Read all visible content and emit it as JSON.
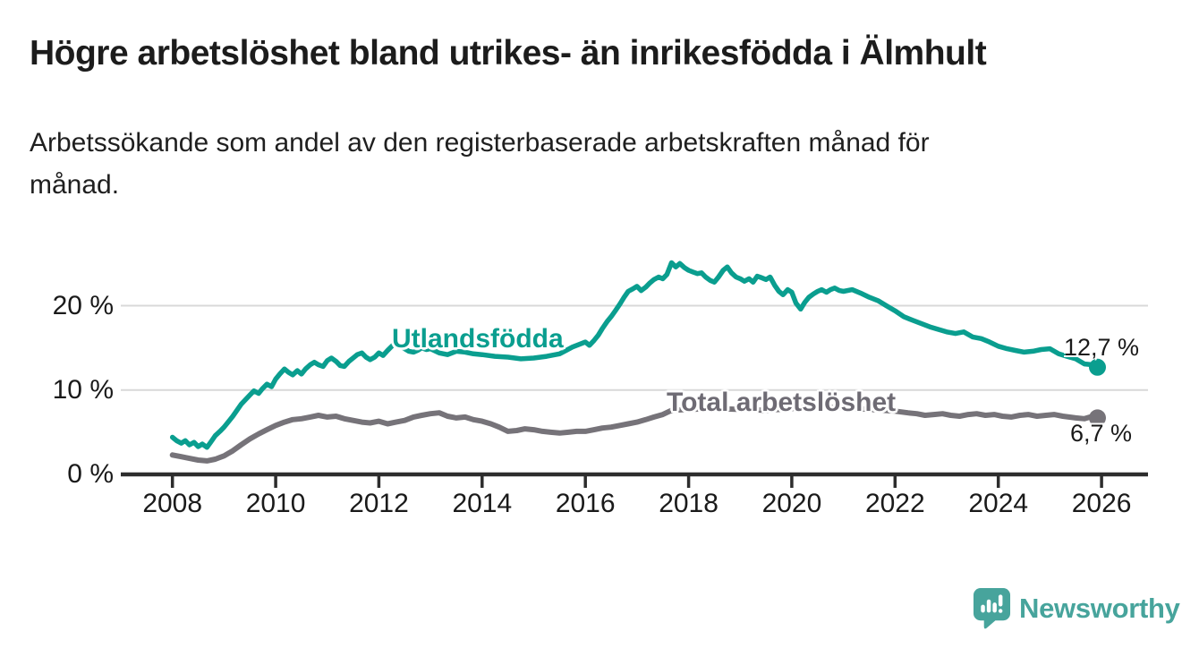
{
  "page": {
    "title": "Högre arbetslöshet bland utrikes- än inrikesfödda i Älmhult",
    "subtitle": "Arbetssökande som andel av den registerbaserade arbetskraften månad för månad."
  },
  "branding": {
    "logo_text": "Newsworthy",
    "logo_color": "#47a49c",
    "logo_icon": "bar-chart-speech-bubble-icon"
  },
  "chart_data": {
    "type": "line",
    "unit": "%",
    "grid": "horizontal",
    "x_axis": {
      "range": [
        2007.0,
        2026.9
      ],
      "ticks": [
        2008,
        2010,
        2012,
        2014,
        2016,
        2018,
        2020,
        2022,
        2024,
        2026
      ]
    },
    "y_axis": {
      "range": [
        0,
        26
      ],
      "ticks": [
        {
          "value": 0,
          "label": "0 %"
        },
        {
          "value": 10,
          "label": "10 %"
        },
        {
          "value": 20,
          "label": "20 %"
        }
      ]
    },
    "colors": {
      "grid": "#d8d8d8",
      "axis": "#2d2d2d",
      "tick_label": "#1a1a1a",
      "value_label": "#1a1a1a"
    },
    "series": [
      {
        "name": "Utlandsfödda",
        "color": "#0a9e8f",
        "label_color": "#0a9e8f",
        "end_label": "12,7 %",
        "end_value": 12.7,
        "points": [
          [
            2008.0,
            4.4
          ],
          [
            2008.08,
            4.0
          ],
          [
            2008.17,
            3.7
          ],
          [
            2008.25,
            4.0
          ],
          [
            2008.33,
            3.5
          ],
          [
            2008.42,
            3.8
          ],
          [
            2008.5,
            3.3
          ],
          [
            2008.58,
            3.6
          ],
          [
            2008.67,
            3.2
          ],
          [
            2008.75,
            3.9
          ],
          [
            2008.83,
            4.6
          ],
          [
            2008.92,
            5.1
          ],
          [
            2009.0,
            5.6
          ],
          [
            2009.17,
            6.9
          ],
          [
            2009.33,
            8.3
          ],
          [
            2009.5,
            9.4
          ],
          [
            2009.58,
            9.9
          ],
          [
            2009.67,
            9.6
          ],
          [
            2009.75,
            10.2
          ],
          [
            2009.83,
            10.7
          ],
          [
            2009.92,
            10.4
          ],
          [
            2010.0,
            11.3
          ],
          [
            2010.08,
            11.9
          ],
          [
            2010.17,
            12.5
          ],
          [
            2010.25,
            12.1
          ],
          [
            2010.33,
            11.8
          ],
          [
            2010.42,
            12.3
          ],
          [
            2010.5,
            11.9
          ],
          [
            2010.58,
            12.5
          ],
          [
            2010.67,
            13.0
          ],
          [
            2010.75,
            13.3
          ],
          [
            2010.83,
            13.0
          ],
          [
            2010.92,
            12.8
          ],
          [
            2011.0,
            13.5
          ],
          [
            2011.08,
            13.8
          ],
          [
            2011.17,
            13.4
          ],
          [
            2011.25,
            12.9
          ],
          [
            2011.33,
            12.8
          ],
          [
            2011.42,
            13.4
          ],
          [
            2011.5,
            13.8
          ],
          [
            2011.58,
            14.2
          ],
          [
            2011.67,
            14.4
          ],
          [
            2011.75,
            13.9
          ],
          [
            2011.83,
            13.6
          ],
          [
            2011.92,
            13.9
          ],
          [
            2012.0,
            14.4
          ],
          [
            2012.08,
            14.1
          ],
          [
            2012.17,
            14.7
          ],
          [
            2012.25,
            15.2
          ],
          [
            2012.33,
            15.6
          ],
          [
            2012.42,
            15.2
          ],
          [
            2012.5,
            14.9
          ],
          [
            2012.58,
            14.6
          ],
          [
            2012.67,
            14.5
          ],
          [
            2012.75,
            14.7
          ],
          [
            2012.83,
            15.0
          ],
          [
            2012.92,
            14.8
          ],
          [
            2013.0,
            14.9
          ],
          [
            2013.17,
            14.4
          ],
          [
            2013.33,
            14.2
          ],
          [
            2013.5,
            14.6
          ],
          [
            2013.67,
            14.5
          ],
          [
            2013.83,
            14.3
          ],
          [
            2014.0,
            14.2
          ],
          [
            2014.25,
            14.0
          ],
          [
            2014.5,
            13.9
          ],
          [
            2014.75,
            13.7
          ],
          [
            2015.0,
            13.8
          ],
          [
            2015.25,
            14.0
          ],
          [
            2015.5,
            14.3
          ],
          [
            2015.75,
            15.1
          ],
          [
            2016.0,
            15.7
          ],
          [
            2016.08,
            15.3
          ],
          [
            2016.17,
            15.9
          ],
          [
            2016.25,
            16.5
          ],
          [
            2016.33,
            17.3
          ],
          [
            2016.42,
            18.1
          ],
          [
            2016.5,
            18.7
          ],
          [
            2016.58,
            19.4
          ],
          [
            2016.67,
            20.2
          ],
          [
            2016.75,
            21.0
          ],
          [
            2016.83,
            21.7
          ],
          [
            2016.92,
            22.0
          ],
          [
            2017.0,
            22.3
          ],
          [
            2017.08,
            21.8
          ],
          [
            2017.17,
            22.2
          ],
          [
            2017.25,
            22.7
          ],
          [
            2017.33,
            23.1
          ],
          [
            2017.42,
            23.4
          ],
          [
            2017.5,
            23.2
          ],
          [
            2017.58,
            23.7
          ],
          [
            2017.67,
            25.1
          ],
          [
            2017.75,
            24.6
          ],
          [
            2017.83,
            25.0
          ],
          [
            2017.92,
            24.5
          ],
          [
            2018.0,
            24.2
          ],
          [
            2018.08,
            24.0
          ],
          [
            2018.17,
            23.8
          ],
          [
            2018.25,
            23.9
          ],
          [
            2018.33,
            23.4
          ],
          [
            2018.42,
            23.0
          ],
          [
            2018.5,
            22.8
          ],
          [
            2018.58,
            23.4
          ],
          [
            2018.67,
            24.2
          ],
          [
            2018.75,
            24.6
          ],
          [
            2018.83,
            23.9
          ],
          [
            2018.92,
            23.4
          ],
          [
            2019.0,
            23.2
          ],
          [
            2019.08,
            22.9
          ],
          [
            2019.17,
            23.2
          ],
          [
            2019.25,
            22.8
          ],
          [
            2019.33,
            23.5
          ],
          [
            2019.42,
            23.3
          ],
          [
            2019.5,
            23.1
          ],
          [
            2019.58,
            23.4
          ],
          [
            2019.67,
            22.4
          ],
          [
            2019.75,
            21.7
          ],
          [
            2019.83,
            21.3
          ],
          [
            2019.92,
            21.9
          ],
          [
            2020.0,
            21.6
          ],
          [
            2020.08,
            20.3
          ],
          [
            2020.17,
            19.6
          ],
          [
            2020.25,
            20.4
          ],
          [
            2020.33,
            21.0
          ],
          [
            2020.42,
            21.4
          ],
          [
            2020.5,
            21.7
          ],
          [
            2020.58,
            21.9
          ],
          [
            2020.67,
            21.6
          ],
          [
            2020.75,
            21.9
          ],
          [
            2020.83,
            22.1
          ],
          [
            2020.92,
            21.8
          ],
          [
            2021.0,
            21.7
          ],
          [
            2021.17,
            21.9
          ],
          [
            2021.33,
            21.5
          ],
          [
            2021.5,
            21.0
          ],
          [
            2021.67,
            20.6
          ],
          [
            2021.83,
            20.0
          ],
          [
            2022.0,
            19.4
          ],
          [
            2022.17,
            18.7
          ],
          [
            2022.33,
            18.3
          ],
          [
            2022.5,
            17.9
          ],
          [
            2022.67,
            17.5
          ],
          [
            2022.83,
            17.2
          ],
          [
            2023.0,
            16.9
          ],
          [
            2023.17,
            16.7
          ],
          [
            2023.33,
            16.9
          ],
          [
            2023.5,
            16.3
          ],
          [
            2023.67,
            16.1
          ],
          [
            2023.83,
            15.7
          ],
          [
            2024.0,
            15.2
          ],
          [
            2024.17,
            14.9
          ],
          [
            2024.33,
            14.7
          ],
          [
            2024.5,
            14.5
          ],
          [
            2024.67,
            14.6
          ],
          [
            2024.83,
            14.8
          ],
          [
            2025.0,
            14.9
          ],
          [
            2025.17,
            14.3
          ],
          [
            2025.33,
            14.0
          ],
          [
            2025.5,
            13.7
          ],
          [
            2025.67,
            13.1
          ],
          [
            2025.83,
            13.0
          ],
          [
            2025.92,
            12.7
          ]
        ]
      },
      {
        "name": "Total arbetslöshet",
        "color": "#767379",
        "label_color": "#6e6b74",
        "end_label": "6,7 %",
        "end_value": 6.7,
        "points": [
          [
            2008.0,
            2.3
          ],
          [
            2008.17,
            2.1
          ],
          [
            2008.33,
            1.9
          ],
          [
            2008.5,
            1.7
          ],
          [
            2008.67,
            1.6
          ],
          [
            2008.83,
            1.8
          ],
          [
            2009.0,
            2.2
          ],
          [
            2009.17,
            2.8
          ],
          [
            2009.33,
            3.5
          ],
          [
            2009.5,
            4.2
          ],
          [
            2009.67,
            4.8
          ],
          [
            2009.83,
            5.3
          ],
          [
            2010.0,
            5.8
          ],
          [
            2010.17,
            6.2
          ],
          [
            2010.33,
            6.5
          ],
          [
            2010.5,
            6.6
          ],
          [
            2010.67,
            6.8
          ],
          [
            2010.83,
            7.0
          ],
          [
            2011.0,
            6.8
          ],
          [
            2011.17,
            6.9
          ],
          [
            2011.33,
            6.6
          ],
          [
            2011.5,
            6.4
          ],
          [
            2011.67,
            6.2
          ],
          [
            2011.83,
            6.1
          ],
          [
            2012.0,
            6.3
          ],
          [
            2012.17,
            6.0
          ],
          [
            2012.33,
            6.2
          ],
          [
            2012.5,
            6.4
          ],
          [
            2012.67,
            6.8
          ],
          [
            2012.83,
            7.0
          ],
          [
            2013.0,
            7.2
          ],
          [
            2013.17,
            7.3
          ],
          [
            2013.33,
            6.9
          ],
          [
            2013.5,
            6.7
          ],
          [
            2013.67,
            6.8
          ],
          [
            2013.83,
            6.5
          ],
          [
            2014.0,
            6.3
          ],
          [
            2014.17,
            6.0
          ],
          [
            2014.33,
            5.6
          ],
          [
            2014.5,
            5.1
          ],
          [
            2014.67,
            5.2
          ],
          [
            2014.83,
            5.4
          ],
          [
            2015.0,
            5.3
          ],
          [
            2015.17,
            5.1
          ],
          [
            2015.33,
            5.0
          ],
          [
            2015.5,
            4.9
          ],
          [
            2015.67,
            5.0
          ],
          [
            2015.83,
            5.1
          ],
          [
            2016.0,
            5.1
          ],
          [
            2016.17,
            5.3
          ],
          [
            2016.33,
            5.5
          ],
          [
            2016.5,
            5.6
          ],
          [
            2016.67,
            5.8
          ],
          [
            2016.83,
            6.0
          ],
          [
            2017.0,
            6.2
          ],
          [
            2017.17,
            6.5
          ],
          [
            2017.33,
            6.8
          ],
          [
            2017.5,
            7.1
          ],
          [
            2017.67,
            7.6
          ],
          [
            2018.0,
            7.7
          ],
          [
            2018.5,
            7.8
          ],
          [
            2019.0,
            7.7
          ],
          [
            2019.5,
            7.6
          ],
          [
            2020.0,
            7.8
          ],
          [
            2020.5,
            8.0
          ],
          [
            2021.0,
            7.9
          ],
          [
            2021.5,
            7.7
          ],
          [
            2022.0,
            7.5
          ],
          [
            2022.25,
            7.3
          ],
          [
            2022.42,
            7.2
          ],
          [
            2022.58,
            7.0
          ],
          [
            2022.75,
            7.1
          ],
          [
            2022.92,
            7.2
          ],
          [
            2023.08,
            7.0
          ],
          [
            2023.25,
            6.9
          ],
          [
            2023.42,
            7.1
          ],
          [
            2023.58,
            7.2
          ],
          [
            2023.75,
            7.0
          ],
          [
            2023.92,
            7.1
          ],
          [
            2024.08,
            6.9
          ],
          [
            2024.25,
            6.8
          ],
          [
            2024.42,
            7.0
          ],
          [
            2024.58,
            7.1
          ],
          [
            2024.75,
            6.9
          ],
          [
            2024.92,
            7.0
          ],
          [
            2025.08,
            7.1
          ],
          [
            2025.25,
            6.9
          ],
          [
            2025.5,
            6.7
          ],
          [
            2025.67,
            6.6
          ],
          [
            2025.83,
            6.9
          ],
          [
            2025.92,
            6.7
          ]
        ]
      }
    ]
  }
}
